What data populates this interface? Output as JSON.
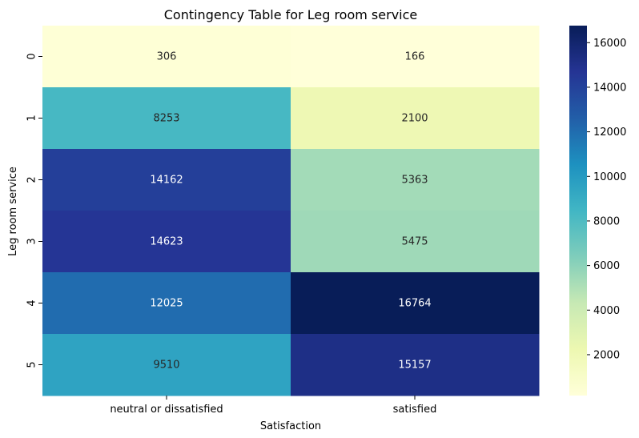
{
  "chart_data": {
    "type": "heatmap",
    "title": "Contingency Table for Leg room service",
    "xlabel": "Satisfaction",
    "ylabel": "Leg room service",
    "x_categories": [
      "neutral or dissatisfied",
      "satisfied"
    ],
    "y_categories": [
      "0",
      "1",
      "2",
      "3",
      "4",
      "5"
    ],
    "values": [
      [
        306,
        166
      ],
      [
        8253,
        2100
      ],
      [
        14162,
        5363
      ],
      [
        14623,
        5475
      ],
      [
        12025,
        16764
      ],
      [
        9510,
        15157
      ]
    ],
    "colormap": "YlGnBu",
    "colorbar": {
      "range": [
        166,
        16764
      ],
      "ticks": [
        2000,
        4000,
        6000,
        8000,
        10000,
        12000,
        14000,
        16000
      ]
    },
    "annotations": "cell values",
    "grid": false
  }
}
